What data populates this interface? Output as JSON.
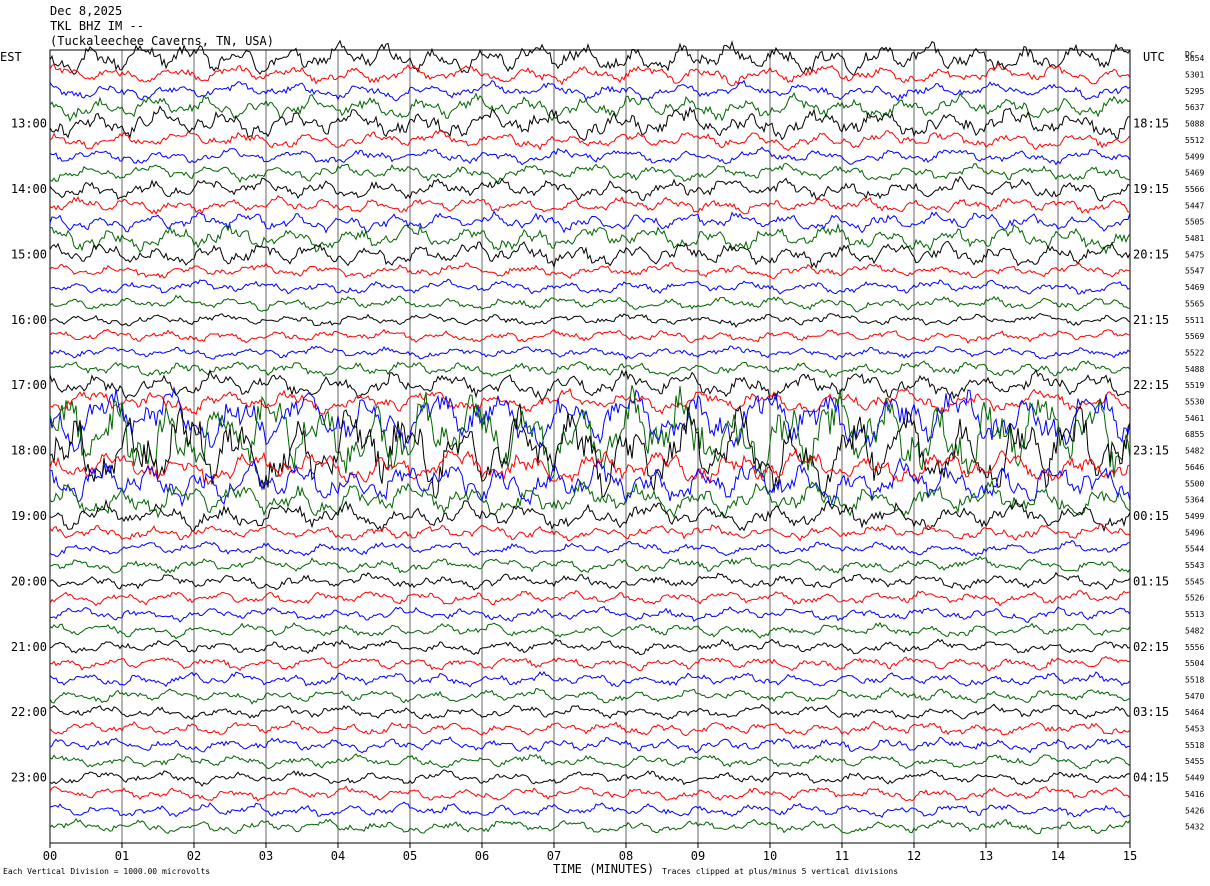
{
  "header": {
    "date": "Dec 8,2025",
    "station": "TKL BHZ IM --",
    "location": "(Tuckaleechee Caverns, TN, USA)"
  },
  "left_corner": "EST",
  "right_corner": "UTC",
  "dc_label": "DC",
  "footer": {
    "scale": "Each Vertical Division = 1000.00 microvolts",
    "xlabel": "TIME (MINUTES)",
    "clip": "Traces clipped at plus/minus 5 vertical divisions"
  },
  "chart_data": {
    "type": "line",
    "title": "",
    "xlabel": "TIME (MINUTES)",
    "xlim": [
      0,
      15
    ],
    "x_ticks": [
      "00",
      "01",
      "02",
      "03",
      "04",
      "05",
      "06",
      "07",
      "08",
      "09",
      "10",
      "11",
      "12",
      "13",
      "14",
      "15"
    ],
    "left_time_labels": [
      "13:00",
      "14:00",
      "15:00",
      "16:00",
      "17:00",
      "18:00",
      "19:00",
      "20:00",
      "21:00",
      "22:00",
      "23:00"
    ],
    "right_time_labels": [
      "18:15",
      "19:15",
      "20:15",
      "21:15",
      "22:15",
      "23:15",
      "00:15",
      "01:15",
      "02:15",
      "03:15",
      "04:15"
    ],
    "trace_colors": [
      "#000000",
      "#ff0000",
      "#0000ff",
      "#006400"
    ],
    "dc_offsets": [
      "5654",
      "5301",
      "5295",
      "5637",
      "5088",
      "5512",
      "5499",
      "5469",
      "5566",
      "5447",
      "5505",
      "5481",
      "5475",
      "5547",
      "5469",
      "5565",
      "5511",
      "5569",
      "5522",
      "5488",
      "5519",
      "5530",
      "5461",
      "6855",
      "5482",
      "5646",
      "5500",
      "5364",
      "5499",
      "5496",
      "5544",
      "5543",
      "5545",
      "5526",
      "5513",
      "5482",
      "5556",
      "5504",
      "5518",
      "5470",
      "5464",
      "5453",
      "5518",
      "5455",
      "5449",
      "5416",
      "5426",
      "5432"
    ],
    "trace_amplitude_divisions": [
      1.8,
      1.1,
      1.0,
      1.4,
      1.7,
      1.0,
      0.9,
      1.0,
      1.2,
      0.9,
      1.1,
      1.5,
      1.4,
      0.8,
      0.8,
      0.8,
      0.7,
      0.7,
      0.7,
      0.9,
      1.6,
      1.4,
      3.5,
      5.0,
      5.0,
      2.0,
      2.5,
      2.0,
      1.6,
      0.9,
      0.8,
      0.9,
      0.9,
      0.8,
      0.8,
      0.8,
      0.8,
      0.8,
      0.8,
      0.8,
      0.8,
      0.8,
      0.8,
      0.8,
      0.8,
      0.8,
      0.8,
      0.8
    ],
    "clip_divisions": 5,
    "grid": true
  }
}
